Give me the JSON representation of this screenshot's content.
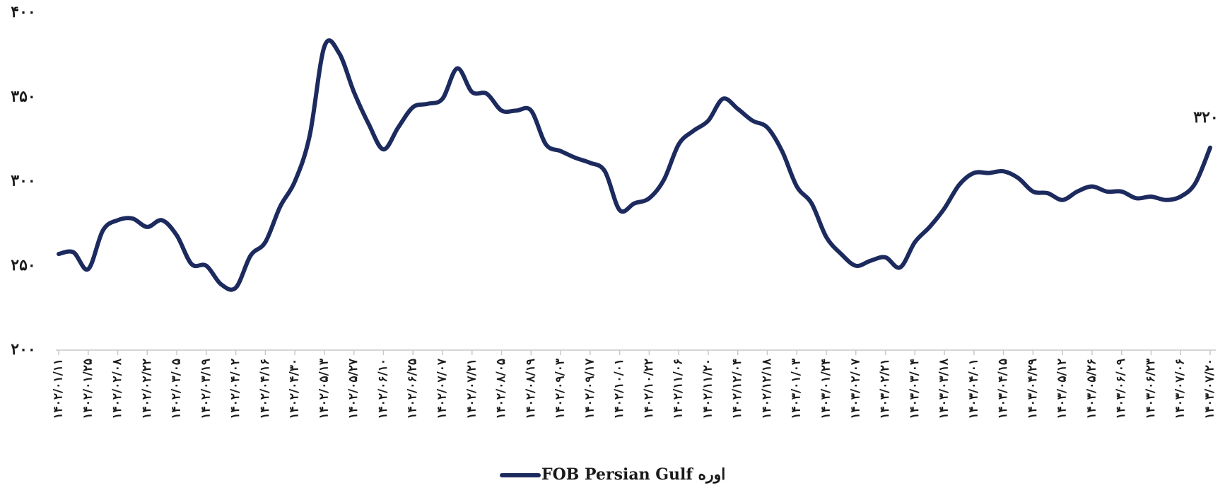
{
  "chart_data": {
    "type": "line",
    "categories": [
      "۱۴۰۲/۰۱/۱۱",
      null,
      "۱۴۰۲/۰۱/۲۵",
      null,
      "۱۴۰۲/۰۲/۰۸",
      null,
      "۱۴۰۲/۰۲/۲۲",
      null,
      "۱۴۰۲/۰۳/۰۵",
      null,
      "۱۴۰۲/۰۳/۱۹",
      null,
      "۱۴۰۲/۰۴/۰۲",
      null,
      "۱۴۰۲/۰۴/۱۶",
      null,
      "۱۴۰۲/۰۴/۳۰",
      null,
      "۱۴۰۲/۰۵/۱۳",
      null,
      "۱۴۰۲/۰۵/۲۷",
      null,
      "۱۴۰۲/۰۶/۱۰",
      null,
      "۱۴۰۲/۰۶/۲۵",
      null,
      "۱۴۰۲/۰۷/۰۷",
      null,
      "۱۴۰۲/۰۷/۲۱",
      null,
      "۱۴۰۲/۰۸/۰۵",
      null,
      "۱۴۰۲/۰۸/۱۹",
      null,
      "۱۴۰۲/۰۹/۰۳",
      null,
      "۱۴۰۲/۰۹/۱۷",
      null,
      "۱۴۰۲/۱۰/۰۱",
      null,
      "۱۴۰۲/۱۰/۲۲",
      null,
      "۱۴۰۲/۱۱/۰۶",
      null,
      "۱۴۰۲/۱۱/۲۰",
      null,
      "۱۴۰۲/۱۲/۰۴",
      null,
      "۱۴۰۲/۱۲/۱۸",
      null,
      "۱۴۰۳/۰۱/۰۳",
      null,
      "۱۴۰۳/۰۱/۲۴",
      null,
      "۱۴۰۳/۰۲/۰۷",
      null,
      "۱۴۰۳/۰۲/۲۱",
      null,
      "۱۴۰۳/۰۳/۰۴",
      null,
      "۱۴۰۳/۰۳/۱۸",
      null,
      "۱۴۰۳/۰۴/۰۱",
      null,
      "۱۴۰۳/۰۴/۱۵",
      null,
      "۱۴۰۳/۰۴/۲۹",
      null,
      "۱۴۰۳/۰۵/۱۲",
      null,
      "۱۴۰۳/۰۵/۲۶",
      null,
      "۱۴۰۳/۰۶/۰۹",
      null,
      "۱۴۰۳/۰۶/۲۳",
      null,
      "۱۴۰۳/۰۷/۰۶",
      null,
      "۱۴۰۳/۰۷/۲۰"
    ],
    "series": [
      {
        "name": "FOB Persian Gulf اوره",
        "color": "#1c2a5e",
        "values": [
          257,
          258,
          248,
          271,
          277,
          278,
          273,
          277,
          268,
          251,
          250,
          239,
          237,
          256,
          264,
          285,
          300,
          327,
          380,
          376,
          353,
          334,
          319,
          332,
          344,
          346,
          349,
          367,
          353,
          352,
          342,
          342,
          342,
          322,
          318,
          314,
          311,
          306,
          283,
          287,
          290,
          301,
          322,
          330,
          336,
          349,
          343,
          336,
          332,
          318,
          297,
          287,
          267,
          257,
          250,
          253,
          255,
          249,
          264,
          273,
          284,
          298,
          305,
          305,
          306,
          302,
          294,
          293,
          289,
          294,
          297,
          294,
          294,
          290,
          291,
          289,
          291,
          299,
          320
        ],
        "value_labels": [
          null,
          null,
          null,
          null,
          null,
          null,
          null,
          null,
          null,
          null,
          null,
          null,
          null,
          null,
          null,
          null,
          null,
          null,
          null,
          null,
          null,
          null,
          null,
          null,
          null,
          null,
          null,
          null,
          null,
          null,
          null,
          null,
          null,
          null,
          null,
          null,
          null,
          null,
          null,
          null,
          null,
          null,
          null,
          null,
          null,
          null,
          null,
          null,
          null,
          null,
          null,
          null,
          null,
          null,
          null,
          null,
          null,
          null,
          null,
          null,
          null,
          null,
          null,
          null,
          null,
          null,
          null,
          null,
          null,
          null,
          null,
          null,
          null,
          null,
          null,
          null,
          null,
          null,
          "۳۲۰"
        ]
      }
    ],
    "ylim": [
      200,
      400
    ],
    "yticks": [
      {
        "value": 200,
        "label": "۲۰۰"
      },
      {
        "value": 250,
        "label": "۲۵۰"
      },
      {
        "value": 300,
        "label": "۳۰۰"
      },
      {
        "value": 350,
        "label": "۳۵۰"
      },
      {
        "value": 400,
        "label": "۴۰۰"
      }
    ],
    "grid": false,
    "legend": "bottom"
  }
}
